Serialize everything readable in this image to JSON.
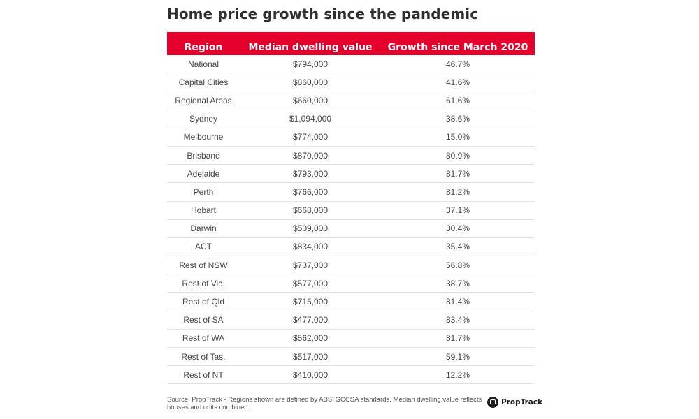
{
  "chart_data": {
    "type": "table",
    "title": "Home price growth since the pandemic",
    "columns": [
      "Region",
      "Median dwelling value",
      "Growth since March 2020"
    ],
    "rows": [
      [
        "National",
        "$794,000",
        "46.7%"
      ],
      [
        "Capital Cities",
        "$860,000",
        "41.6%"
      ],
      [
        "Regional Areas",
        "$660,000",
        "61.6%"
      ],
      [
        "Sydney",
        "$1,094,000",
        "38.6%"
      ],
      [
        "Melbourne",
        "$774,000",
        "15.0%"
      ],
      [
        "Brisbane",
        "$870,000",
        "80.9%"
      ],
      [
        "Adelaide",
        "$793,000",
        "81.7%"
      ],
      [
        "Perth",
        "$766,000",
        "81.2%"
      ],
      [
        "Hobart",
        "$668,000",
        "37.1%"
      ],
      [
        "Darwin",
        "$509,000",
        "30.4%"
      ],
      [
        "ACT",
        "$834,000",
        "35.4%"
      ],
      [
        "Rest of NSW",
        "$737,000",
        "56.8%"
      ],
      [
        "Rest of Vic.",
        "$577,000",
        "38.7%"
      ],
      [
        "Rest of Qld",
        "$715,000",
        "81.4%"
      ],
      [
        "Rest of SA",
        "$477,000",
        "83.4%"
      ],
      [
        "Rest of WA",
        "$562,000",
        "81.7%"
      ],
      [
        "Rest of Tas.",
        "$517,000",
        "59.1%"
      ],
      [
        "Rest of NT",
        "$410,000",
        "12.2%"
      ]
    ],
    "header_color": "#e4002b",
    "source_note": "Source: PropTrack - Regions shown are defined by ABS' GCCSA standards. Median dwelling value reflects houses and units combined."
  },
  "logo": {
    "text": "PropTrack",
    "icon": "proptrack-logo-icon"
  }
}
